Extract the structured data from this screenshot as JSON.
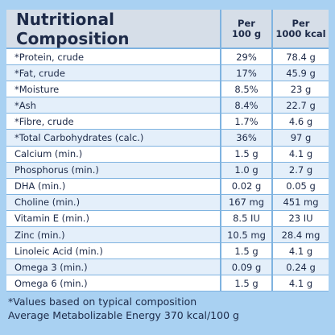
{
  "header": {
    "title": "Nutritional Composition",
    "columns": [
      [
        "Per",
        "100 g"
      ],
      [
        "Per",
        "1000 kcal"
      ]
    ]
  },
  "table": {
    "rows": [
      [
        "*Protein, crude",
        "29%",
        "78.4 g"
      ],
      [
        "*Fat, crude",
        "17%",
        "45.9 g"
      ],
      [
        "*Moisture",
        "8.5%",
        "23 g"
      ],
      [
        "*Ash",
        "8.4%",
        "22.7 g"
      ],
      [
        "*Fibre, crude",
        "1.7%",
        "4.6 g"
      ],
      [
        "*Total Carbohydrates (calc.)",
        "36%",
        "97 g"
      ],
      [
        "Calcium (min.)",
        "1.5 g",
        "4.1 g"
      ],
      [
        "Phosphorus (min.)",
        "1.0 g",
        "2.7 g"
      ],
      [
        "DHA (min.)",
        "0.02 g",
        "0.05 g"
      ],
      [
        "Choline (min.)",
        "167 mg",
        "451 mg"
      ],
      [
        "Vitamin E (min.)",
        "8.5 IU",
        "23 IU"
      ],
      [
        "Zinc (min.)",
        "10.5 mg",
        "28.4 mg"
      ],
      [
        "Linoleic Acid (min.)",
        "1.5 g",
        "4.1 g"
      ],
      [
        "Omega 3 (min.)",
        "0.09 g",
        "0.24 g"
      ],
      [
        "Omega 6 (min.)",
        "1.5 g",
        "4.1 g"
      ]
    ]
  },
  "footnotes": [
    "*Values based on typical composition",
    "Average Metabolizable Energy 370 kcal/100 g"
  ]
}
